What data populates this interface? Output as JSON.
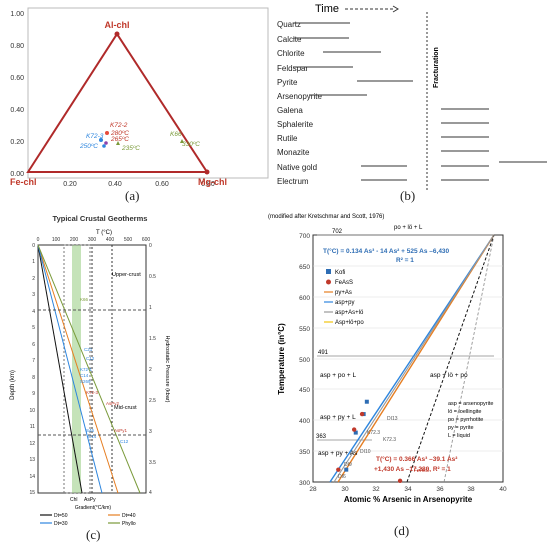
{
  "panel_a": {
    "caption": "(a)",
    "apex_label": "Al-chl",
    "left_label": "Fe-chl",
    "right_label": "Mg-chl",
    "y_ticks": [
      "1.00",
      "0.80",
      "0.60",
      "0.40",
      "0.20",
      "0.00"
    ],
    "x_ticks": [
      "0.20",
      "0.40",
      "0.60",
      "0.80"
    ],
    "annotations": {
      "k72_2": "K72-2",
      "t280": "280ºC",
      "t265": "265ºC",
      "k72_3": "K72-3",
      "t250": "250ºC",
      "t235": "235ºC",
      "k66": "K66",
      "t330": "330ºC"
    }
  },
  "panel_b": {
    "caption": "(b)",
    "time_label": "Time",
    "fracturation_label": "Fracturation",
    "minerals": [
      "Quartz",
      "Calcite",
      "Chlorite",
      "Feldspar",
      "Pyrite",
      "Arsenopyrite",
      "Galena",
      "Sphalerite",
      "Rutile",
      "Monazite",
      "Native gold",
      "Electrum"
    ]
  },
  "panel_c": {
    "caption": "(c)",
    "title": "Typical Crustal Geotherms",
    "top_axis_label": "T (°C)",
    "top_ticks": [
      "0",
      "100",
      "200",
      "300",
      "400",
      "500",
      "600"
    ],
    "left_axis_label": "Depth (km)",
    "left_ticks": [
      "0",
      "1",
      "2",
      "3",
      "4",
      "5",
      "6",
      "7",
      "8",
      "9",
      "10",
      "11",
      "12",
      "13",
      "14",
      "15"
    ],
    "right_axis_label": "Hydrostatic Pressure (kbar)",
    "right_ticks": [
      "0",
      "0.5",
      "1",
      "1.5",
      "2",
      "2.5",
      "3",
      "3.5",
      "4"
    ],
    "zone_upper": "Upper-crust",
    "zone_mid": "Mid-crust",
    "bottom_labels": {
      "chl": "Chl",
      "aspy": "AsPy",
      "gradient": "Gradient(°C/km)"
    },
    "legend": [
      "Dt=50",
      "Dt=40",
      "Dt=30",
      "Phyllo"
    ],
    "sample_labels": [
      "K66",
      "C21",
      "C12",
      "K72-1",
      "C14",
      "S269",
      "K72-3",
      "S46",
      "C14",
      "AsPy2",
      "AsPy1",
      "C12"
    ]
  },
  "panel_d": {
    "caption": "(d)",
    "header": "(modified after  Kretschmar and Scott, 1976)",
    "top_label": "po + lö + L",
    "y_axis_label": "Temperature  (in°C)",
    "x_axis_label": "Atomic % Arsenic in Arsenopyrite",
    "y_ticks": [
      "700",
      "650",
      "600",
      "550",
      "500",
      "450",
      "400",
      "350",
      "300"
    ],
    "x_ticks": [
      "28",
      "30",
      "32",
      "34",
      "36",
      "38",
      "40"
    ],
    "marks": [
      "702",
      "491",
      "363"
    ],
    "eq_blue": "T(°C) = 0.134 As³ - 14 As² + 525 As –6,430",
    "r2_blue": "R² = 1",
    "eq_red_1": "T(°C) = 0.366 As³ –39.1 As²",
    "eq_red_2": "+1,430 As –17,280,  R² = 1",
    "legend": [
      "Kofi",
      "FeAsS",
      "py+As",
      "asp+py",
      "asp+As+lö",
      "Asp+lö+po"
    ],
    "fields": {
      "asp_po_L": "asp + po + L",
      "asp_lo_po": "asp + lö + po",
      "asp_py_L": "asp + py + L",
      "asp_py_as": "asp + py + As"
    },
    "key": [
      "asp = arsenopyrite",
      "lö = loellingite",
      "po = pyrrhotite",
      "py = pyrite",
      "L = liquid"
    ],
    "points": [
      "DI13",
      "K72.3",
      "K72.3",
      "DI10",
      "DI9",
      "DI6",
      "FeAsS"
    ]
  },
  "chart_data": [
    {
      "type": "scatter",
      "title": "",
      "xlabel": "Atomic % Arsenic in Arsenopyrite",
      "ylabel": "Temperature  (in°C)",
      "xlim": [
        28,
        40
      ],
      "ylim": [
        300,
        700
      ],
      "series": [
        {
          "name": "Kofi",
          "x": [
            30.1,
            30.7,
            31.2,
            31.4
          ],
          "y": [
            320,
            380,
            410,
            430
          ]
        },
        {
          "name": "FeAsS",
          "x": [
            29.6,
            30.6,
            31.1,
            33.5
          ],
          "y": [
            320,
            385,
            410,
            302
          ]
        }
      ]
    }
  ]
}
